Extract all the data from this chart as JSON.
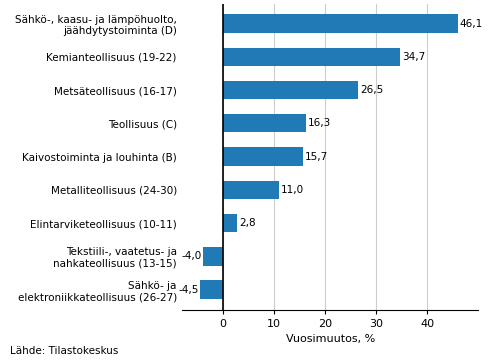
{
  "categories": [
    "Sähkö- ja\nelektroniikkateollisuus (26-27)",
    "Tekstiili-, vaatetus- ja\nnahkateollisuus (13-15)",
    "Elintarviketeollisuus (10-11)",
    "Metalliteollisuus (24-30)",
    "Kaivostoiminta ja louhinta (B)",
    "Teollisuus (C)",
    "Metsäteollisuus (16-17)",
    "Kemianteollisuus (19-22)",
    "Sähkö-, kaasu- ja lämpöhuolto,\njäähdytystoiminta (D)"
  ],
  "values": [
    -4.5,
    -4.0,
    2.8,
    11.0,
    15.7,
    16.3,
    26.5,
    34.7,
    46.1
  ],
  "bar_color": "#1f7ab5",
  "xlabel": "Vuosimuutos, %",
  "xlim": [
    -8,
    50
  ],
  "xticks": [
    0,
    10,
    20,
    30,
    40
  ],
  "source_text": "Lähde: Tilastokeskus",
  "background_color": "#ffffff",
  "grid_color": "#cccccc",
  "label_fontsize": 7.5,
  "tick_fontsize": 8.0,
  "value_fontsize": 7.5,
  "source_fontsize": 7.5,
  "bar_height": 0.55
}
